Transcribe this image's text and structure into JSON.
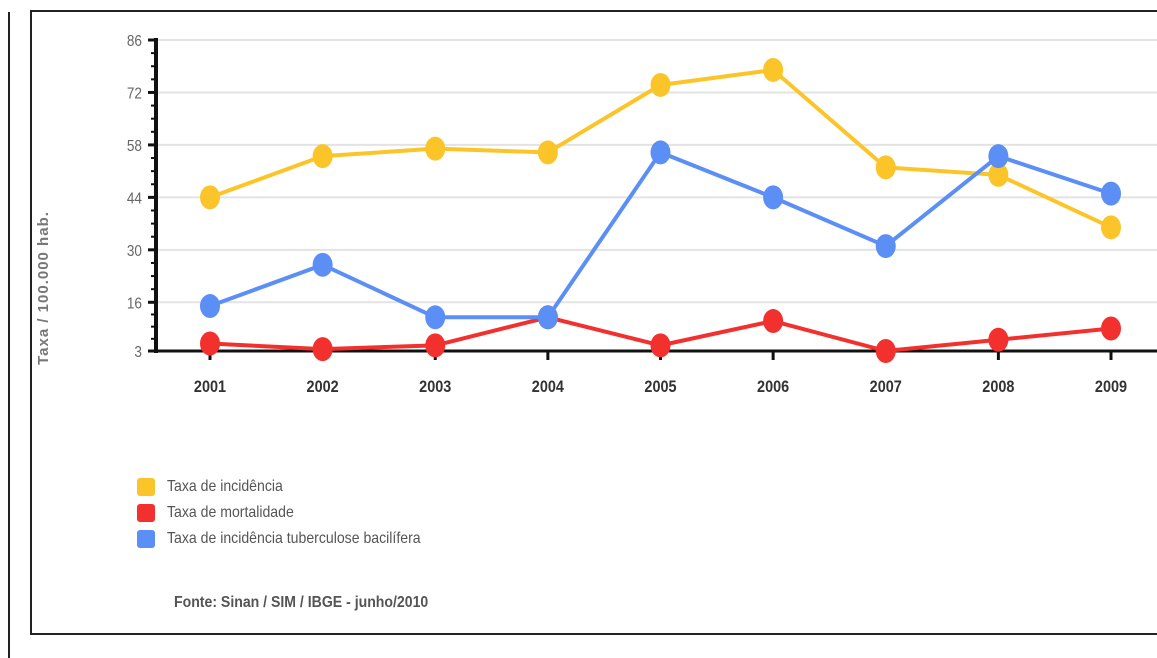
{
  "chart_data": {
    "type": "line",
    "title": "",
    "xlabel": "",
    "ylabel": "Taxa / 100.000 hab.",
    "x": [
      "2001",
      "2002",
      "2003",
      "2004",
      "2005",
      "2006",
      "2007",
      "2008",
      "2009"
    ],
    "yticks": [
      3,
      16,
      30,
      44,
      58,
      72,
      86
    ],
    "ylim": [
      3,
      86
    ],
    "grid": true,
    "legend_position": "bottom-left",
    "series": [
      {
        "name": "Taxa de incidência",
        "color": "#fbc52a",
        "values": [
          44,
          55,
          57,
          56,
          74,
          78,
          52,
          50,
          36
        ]
      },
      {
        "name": "Taxa de mortalidade",
        "color": "#f2312e",
        "values": [
          5,
          3.5,
          4.5,
          12,
          4.5,
          11,
          3,
          6,
          9
        ]
      },
      {
        "name": "Taxa de incidência tuberculose bacilífera",
        "color": "#5c8ff5",
        "values": [
          15,
          26,
          12,
          12,
          56,
          44,
          31,
          55,
          45
        ]
      }
    ],
    "source": "Fonte: Sinan / SIM / IBGE - junho/2010"
  }
}
